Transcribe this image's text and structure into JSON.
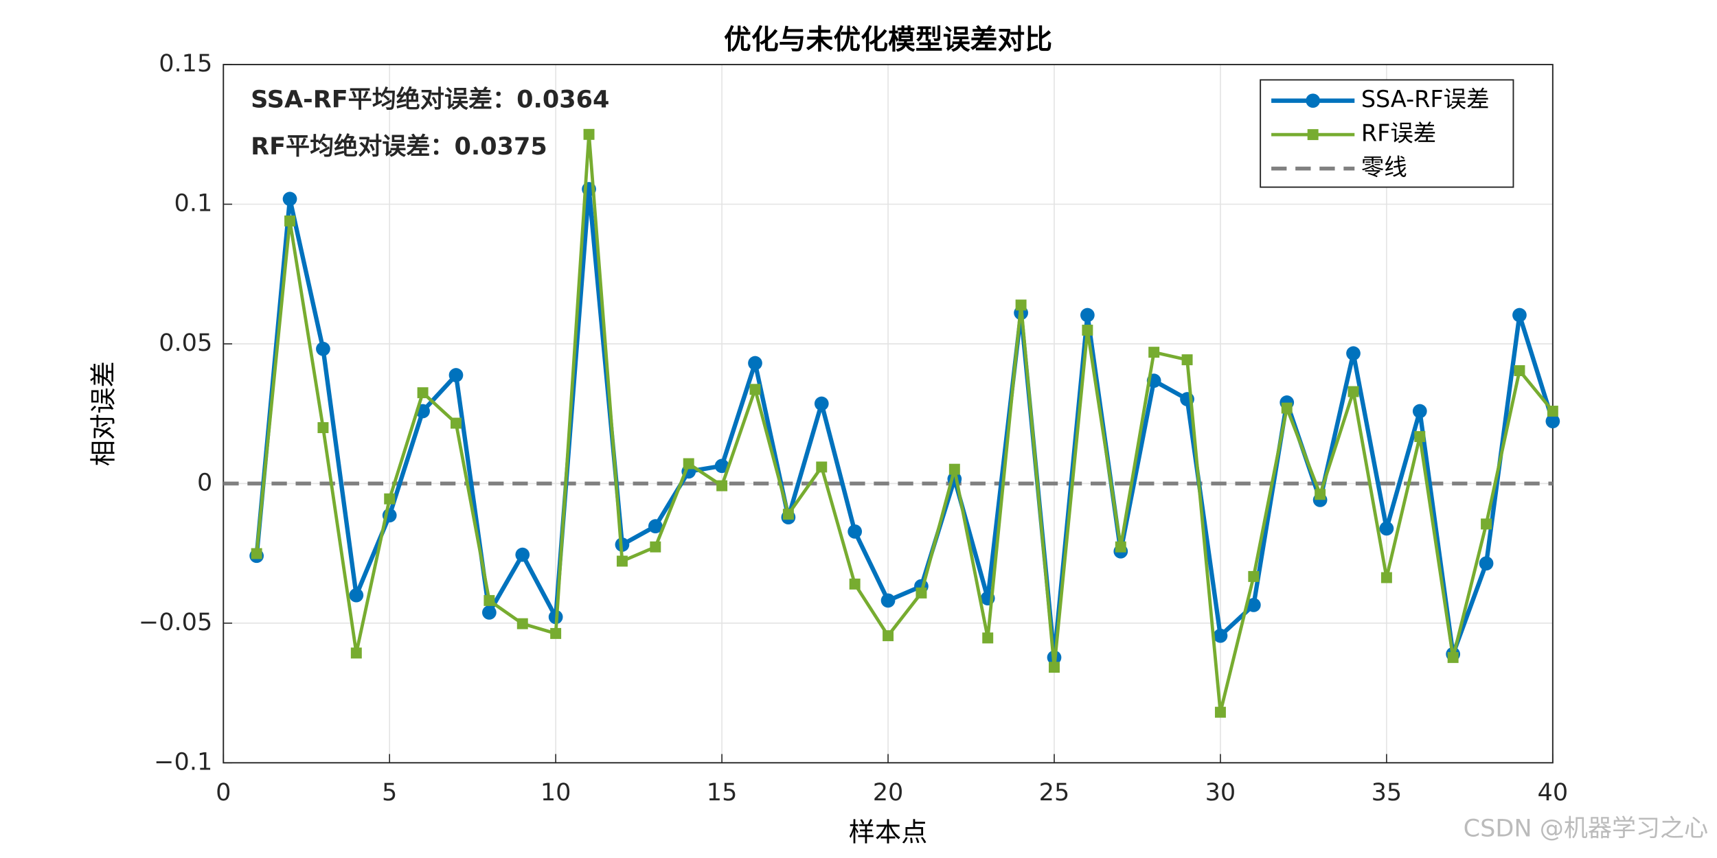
{
  "chart_data": {
    "type": "line",
    "title": "优化与未优化模型误差对比",
    "xlabel": "样本点",
    "ylabel": "相对误差",
    "x": [
      1,
      2,
      3,
      4,
      5,
      6,
      7,
      8,
      9,
      10,
      11,
      12,
      13,
      14,
      15,
      16,
      17,
      18,
      19,
      20,
      21,
      22,
      23,
      24,
      25,
      26,
      27,
      28,
      29,
      30,
      31,
      32,
      33,
      34,
      35,
      36,
      37,
      38,
      39,
      40
    ],
    "series": [
      {
        "name": "SSA-RF误差",
        "color": "#0072BD",
        "marker": "circle",
        "values": [
          -0.0259,
          0.1019,
          0.0482,
          -0.04,
          -0.0114,
          0.0259,
          0.0388,
          -0.0462,
          -0.0255,
          -0.0478,
          0.1054,
          -0.0219,
          -0.0153,
          0.0043,
          0.0063,
          0.0431,
          -0.0121,
          0.0286,
          -0.0172,
          -0.0419,
          -0.0368,
          0.0016,
          -0.0411,
          0.0611,
          -0.0623,
          0.0603,
          -0.0243,
          0.0368,
          0.0302,
          -0.0545,
          -0.0435,
          0.029,
          -0.0059,
          0.0466,
          -0.0161,
          0.0259,
          -0.0611,
          -0.0286,
          0.0603,
          0.0223
        ]
      },
      {
        "name": "RF误差",
        "color": "#77AC30",
        "marker": "square",
        "values": [
          -0.0251,
          0.094,
          0.02,
          -0.0607,
          -0.0055,
          0.0325,
          0.0216,
          -0.0419,
          -0.0502,
          -0.0537,
          0.125,
          -0.0278,
          -0.0227,
          0.0071,
          -0.0008,
          0.0337,
          -0.011,
          0.0059,
          -0.036,
          -0.0545,
          -0.0392,
          0.0051,
          -0.0553,
          0.0639,
          -0.0658,
          0.0549,
          -0.0227,
          0.047,
          0.0443,
          -0.0819,
          -0.0333,
          0.027,
          -0.0039,
          0.0329,
          -0.0337,
          0.0168,
          -0.0623,
          -0.0145,
          0.0404,
          0.0259
        ]
      }
    ],
    "reference_lines": [
      {
        "name": "零线",
        "value": 0,
        "color": "#808080"
      }
    ],
    "annotations": [
      {
        "text": "SSA-RF平均绝对误差：0.0364",
        "color": "#0072BD"
      },
      {
        "text": "RF平均绝对误差：0.0375",
        "color": "#77AC30"
      }
    ],
    "xlim": [
      0,
      40
    ],
    "xticks": [
      0,
      5,
      10,
      15,
      20,
      25,
      30,
      35,
      40
    ],
    "ylim": [
      -0.1,
      0.15
    ],
    "yticks": [
      {
        "value": -0.1,
        "label": "−0.1"
      },
      {
        "value": -0.05,
        "label": "−0.05"
      },
      0,
      0.05,
      0.1,
      0.15
    ],
    "grid": true,
    "legend": "upper right",
    "watermark": "CSDN @机器学习之心"
  }
}
